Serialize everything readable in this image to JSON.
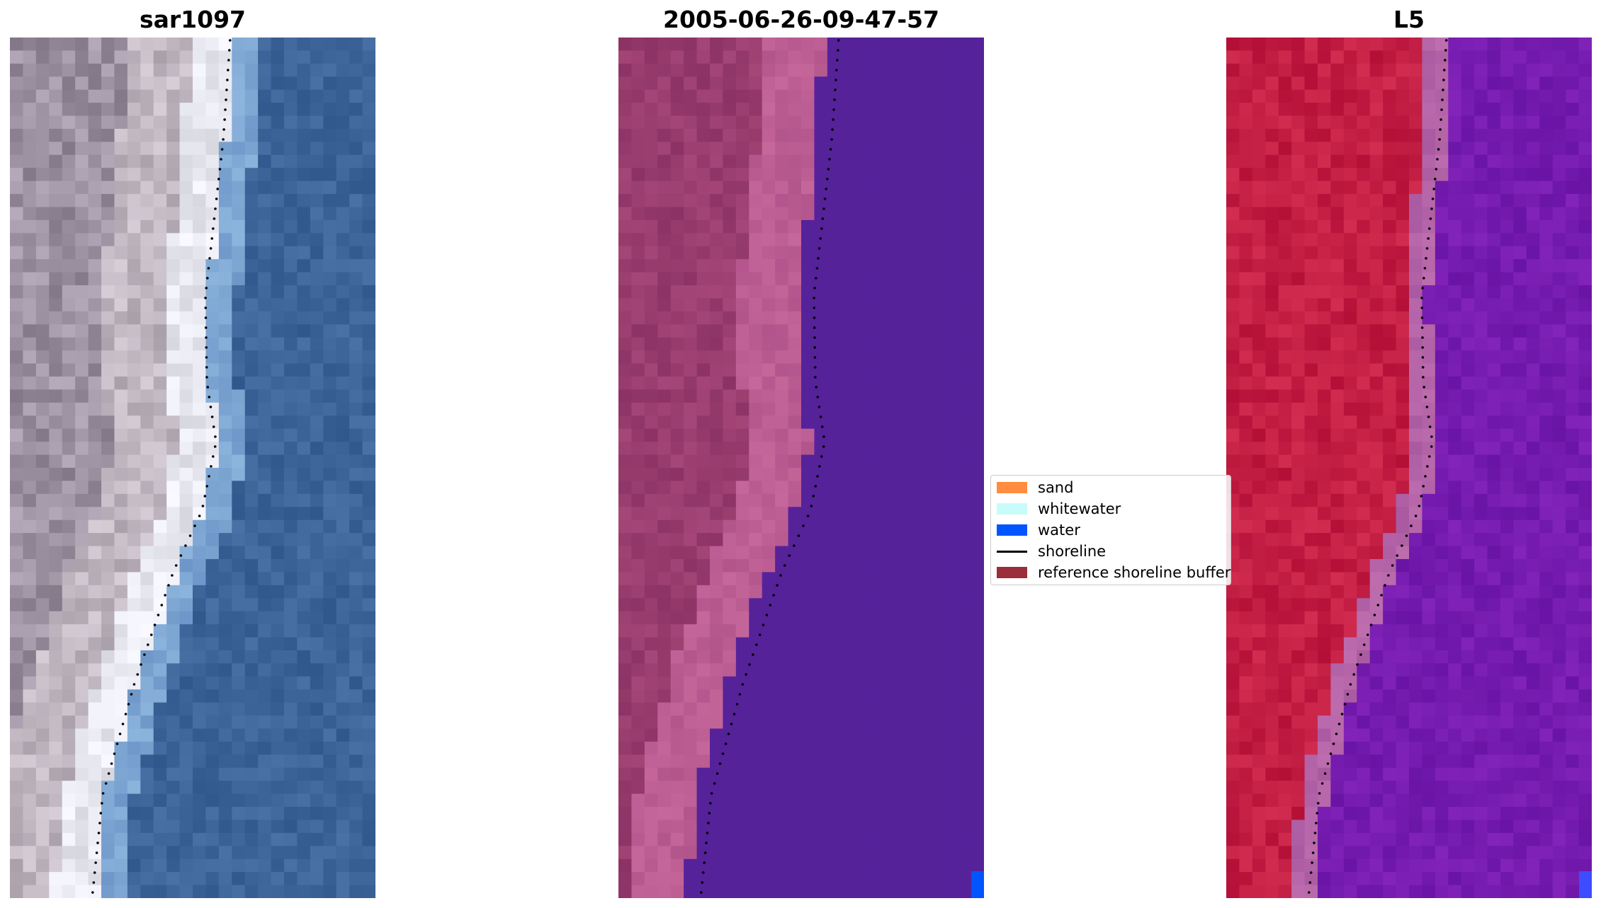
{
  "panels": [
    {
      "title": "sar1097"
    },
    {
      "title": "2005-06-26-09-47-57"
    },
    {
      "title": "L5"
    }
  ],
  "legend": {
    "items": [
      {
        "label": "sand",
        "kind": "patch",
        "color": "#ff8c3f"
      },
      {
        "label": "whitewater",
        "kind": "patch",
        "color": "#c8fcfa"
      },
      {
        "label": "water",
        "kind": "patch",
        "color": "#0055ff"
      },
      {
        "label": "shoreline",
        "kind": "line",
        "color": "#000000"
      },
      {
        "label": "reference shoreline buffer",
        "kind": "patch",
        "color": "#9a2e3a"
      }
    ]
  }
}
